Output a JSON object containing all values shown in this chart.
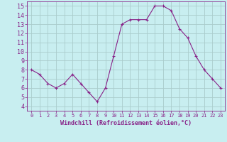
{
  "x": [
    0,
    1,
    2,
    3,
    4,
    5,
    6,
    7,
    8,
    9,
    10,
    11,
    12,
    13,
    14,
    15,
    16,
    17,
    18,
    19,
    20,
    21,
    22,
    23
  ],
  "y": [
    8.0,
    7.5,
    6.5,
    6.0,
    6.5,
    7.5,
    6.5,
    5.5,
    4.5,
    6.0,
    9.5,
    13.0,
    13.5,
    13.5,
    13.5,
    15.0,
    15.0,
    14.5,
    12.5,
    11.5,
    9.5,
    8.0,
    7.0,
    6.0
  ],
  "line_color": "#882288",
  "marker": "+",
  "bg_color": "#c8eef0",
  "grid_color": "#aacccc",
  "xlabel": "Windchill (Refroidissement éolien,°C)",
  "xlabel_color": "#882288",
  "tick_color": "#882288",
  "ylim": [
    3.5,
    15.5
  ],
  "xlim": [
    -0.5,
    23.5
  ],
  "yticks": [
    4,
    5,
    6,
    7,
    8,
    9,
    10,
    11,
    12,
    13,
    14,
    15
  ],
  "xticks": [
    0,
    1,
    2,
    3,
    4,
    5,
    6,
    7,
    8,
    9,
    10,
    11,
    12,
    13,
    14,
    15,
    16,
    17,
    18,
    19,
    20,
    21,
    22,
    23
  ]
}
